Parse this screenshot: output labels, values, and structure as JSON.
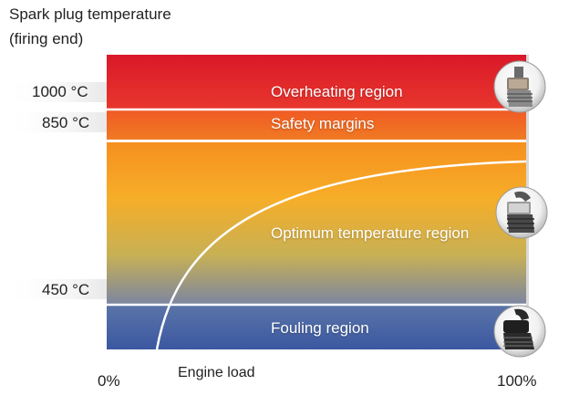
{
  "y_axis_title_line1": "Spark plug temperature",
  "y_axis_title_line2": "(firing end)",
  "y_ticks": {
    "t1000": "1000 °C",
    "t850": "850 °C",
    "t450": "450 °C"
  },
  "regions": {
    "overheating": "Overheating region",
    "safety": "Safety margins",
    "optimum": "Optimum temperature region",
    "fouling": "Fouling region"
  },
  "x_axis": {
    "min_label": "0%",
    "title": "Engine load",
    "max_label": "100%"
  },
  "icons": {
    "top": "spark-plug-overheated-icon",
    "middle": "spark-plug-optimum-icon",
    "bottom": "spark-plug-fouled-icon"
  },
  "colors": {
    "overheating": "#e3222b",
    "safety": "#ef5a23",
    "optimum_top": "#f6a623",
    "fouling": "#4a66a4"
  }
}
